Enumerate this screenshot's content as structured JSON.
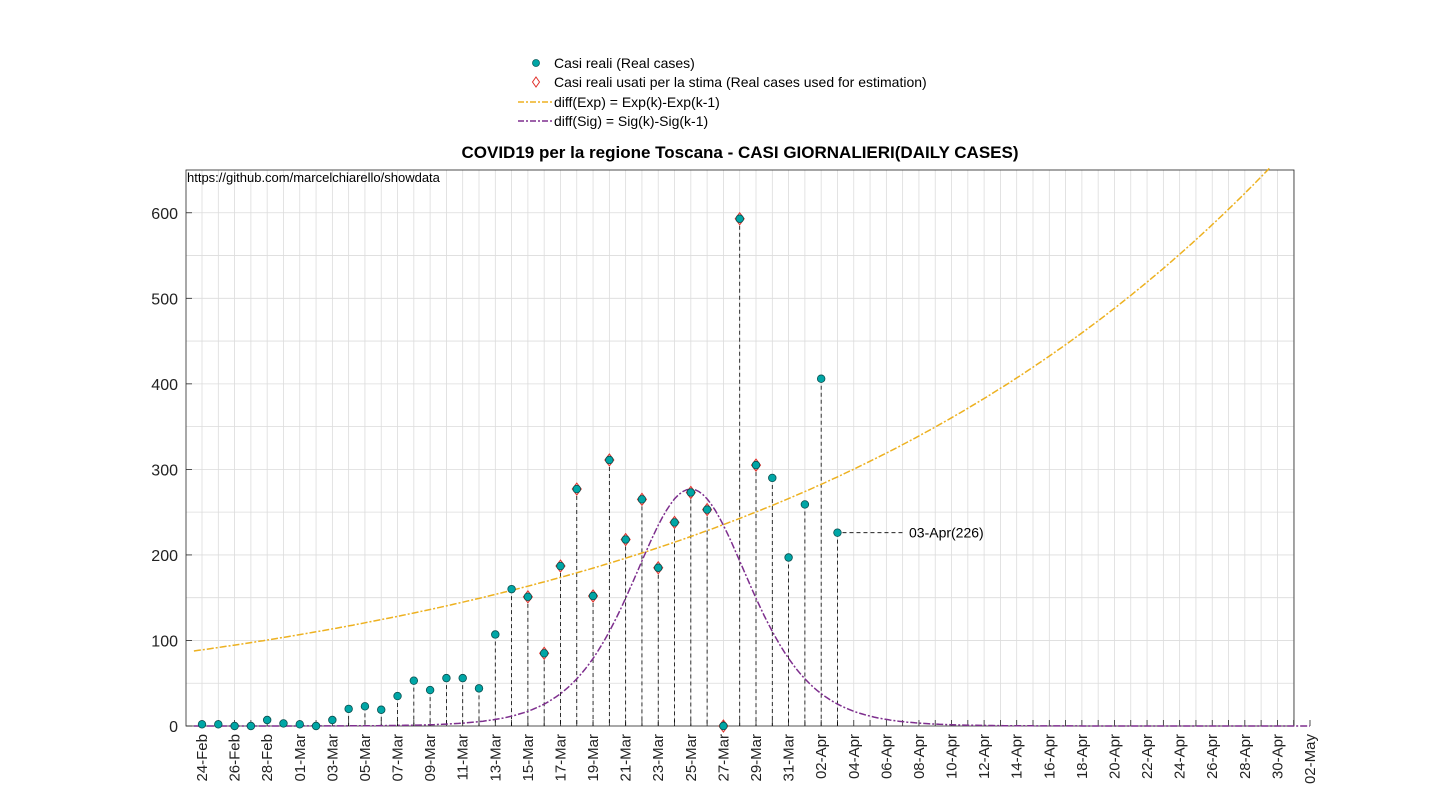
{
  "chart_data": {
    "type": "scatter",
    "title": "COVID19 per la regione Toscana - CASI GIORNALIERI(DAILY CASES)",
    "source_text": "https://github.com/marcelchiarello/showdata",
    "xlabel": "",
    "ylabel": "",
    "ylim": [
      0,
      650
    ],
    "yticks": [
      0,
      100,
      200,
      300,
      400,
      500,
      600
    ],
    "x_range_labels": [
      "24-Feb",
      "02-May"
    ],
    "xtick_labels": [
      "24-Feb",
      "26-Feb",
      "28-Feb",
      "01-Mar",
      "03-Mar",
      "05-Mar",
      "07-Mar",
      "09-Mar",
      "11-Mar",
      "13-Mar",
      "15-Mar",
      "17-Mar",
      "19-Mar",
      "21-Mar",
      "23-Mar",
      "25-Mar",
      "27-Mar",
      "29-Mar",
      "31-Mar",
      "02-Apr",
      "04-Apr",
      "06-Apr",
      "08-Apr",
      "10-Apr",
      "12-Apr",
      "14-Apr",
      "16-Apr",
      "18-Apr",
      "20-Apr",
      "22-Apr",
      "24-Apr",
      "26-Apr",
      "28-Apr",
      "30-Apr",
      "02-May"
    ],
    "grid": true,
    "legend_position": "top-center",
    "series": [
      {
        "name": "Casi reali (Real cases)",
        "marker": "filled-circle",
        "color": "#00A6A6",
        "values": [
          2,
          2,
          0,
          0,
          7,
          3,
          2,
          0,
          7,
          20,
          23,
          19,
          35,
          53,
          42,
          56,
          56,
          44,
          107,
          160,
          151,
          85,
          187,
          277,
          152,
          311,
          218,
          265,
          185,
          238,
          273,
          253,
          0,
          593,
          305,
          290,
          197,
          259,
          406,
          226
        ]
      },
      {
        "name": "Casi reali usati per la stima (Real cases used for estimation)",
        "marker": "diamond-open",
        "color": "#E0302A",
        "values": [
          null,
          null,
          null,
          null,
          null,
          null,
          null,
          null,
          null,
          null,
          null,
          null,
          null,
          null,
          null,
          null,
          null,
          null,
          null,
          null,
          151,
          85,
          187,
          277,
          152,
          311,
          218,
          265,
          185,
          238,
          273,
          253,
          0,
          593,
          305,
          null,
          null,
          null,
          null,
          null
        ]
      },
      {
        "name": "diff(Exp) = Exp(k)-Exp(k-1)",
        "line": "dash-dot",
        "color": "#EDB120",
        "model": {
          "kind": "exponential",
          "a": 89,
          "r": 0.0304
        }
      },
      {
        "name": "diff(Sig) = Sig(k)-Sig(k-1)",
        "line": "dash-dot",
        "color": "#7E2F8E",
        "model": {
          "kind": "sigmoid-derivative",
          "peak": 277,
          "center": 30,
          "scale": 4.84
        }
      }
    ],
    "annotation": {
      "text": "03-Apr(226)",
      "day": 39,
      "value": 226
    }
  }
}
